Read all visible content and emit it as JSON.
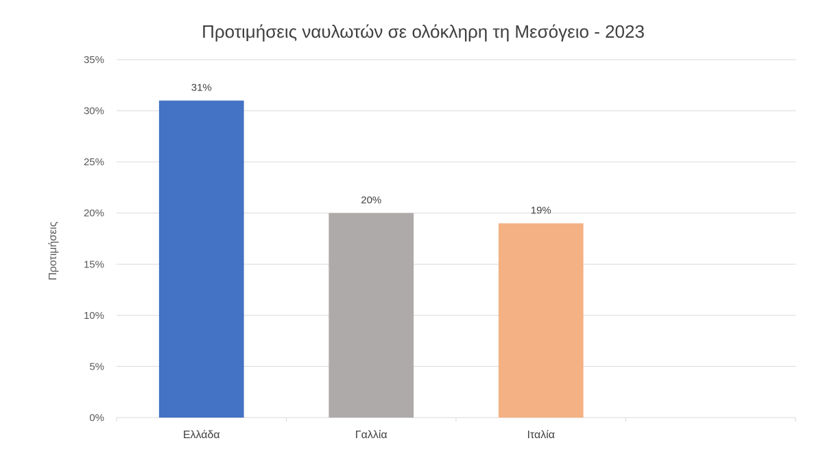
{
  "chart_data": {
    "type": "bar",
    "title": "Προτιμήσεις ναυλωτών σε ολόκληρη τη Μεσόγειο - 2023",
    "xlabel": "",
    "ylabel": "Προτιμήσεις",
    "categories": [
      "Ελλάδα",
      "Γαλλία",
      "Ιταλία",
      ""
    ],
    "values": [
      31,
      20,
      19,
      null
    ],
    "value_labels": [
      "31%",
      "20%",
      "19%",
      ""
    ],
    "colors": [
      "#4472c4",
      "#adaaa9",
      "#f4b183",
      ""
    ],
    "ylim": [
      0,
      35
    ],
    "yticks": [
      0,
      5,
      10,
      15,
      20,
      25,
      30,
      35
    ],
    "ytick_labels": [
      "0%",
      "5%",
      "10%",
      "15%",
      "20%",
      "25%",
      "30%",
      "35%"
    ],
    "grid": true,
    "legend": "none"
  }
}
